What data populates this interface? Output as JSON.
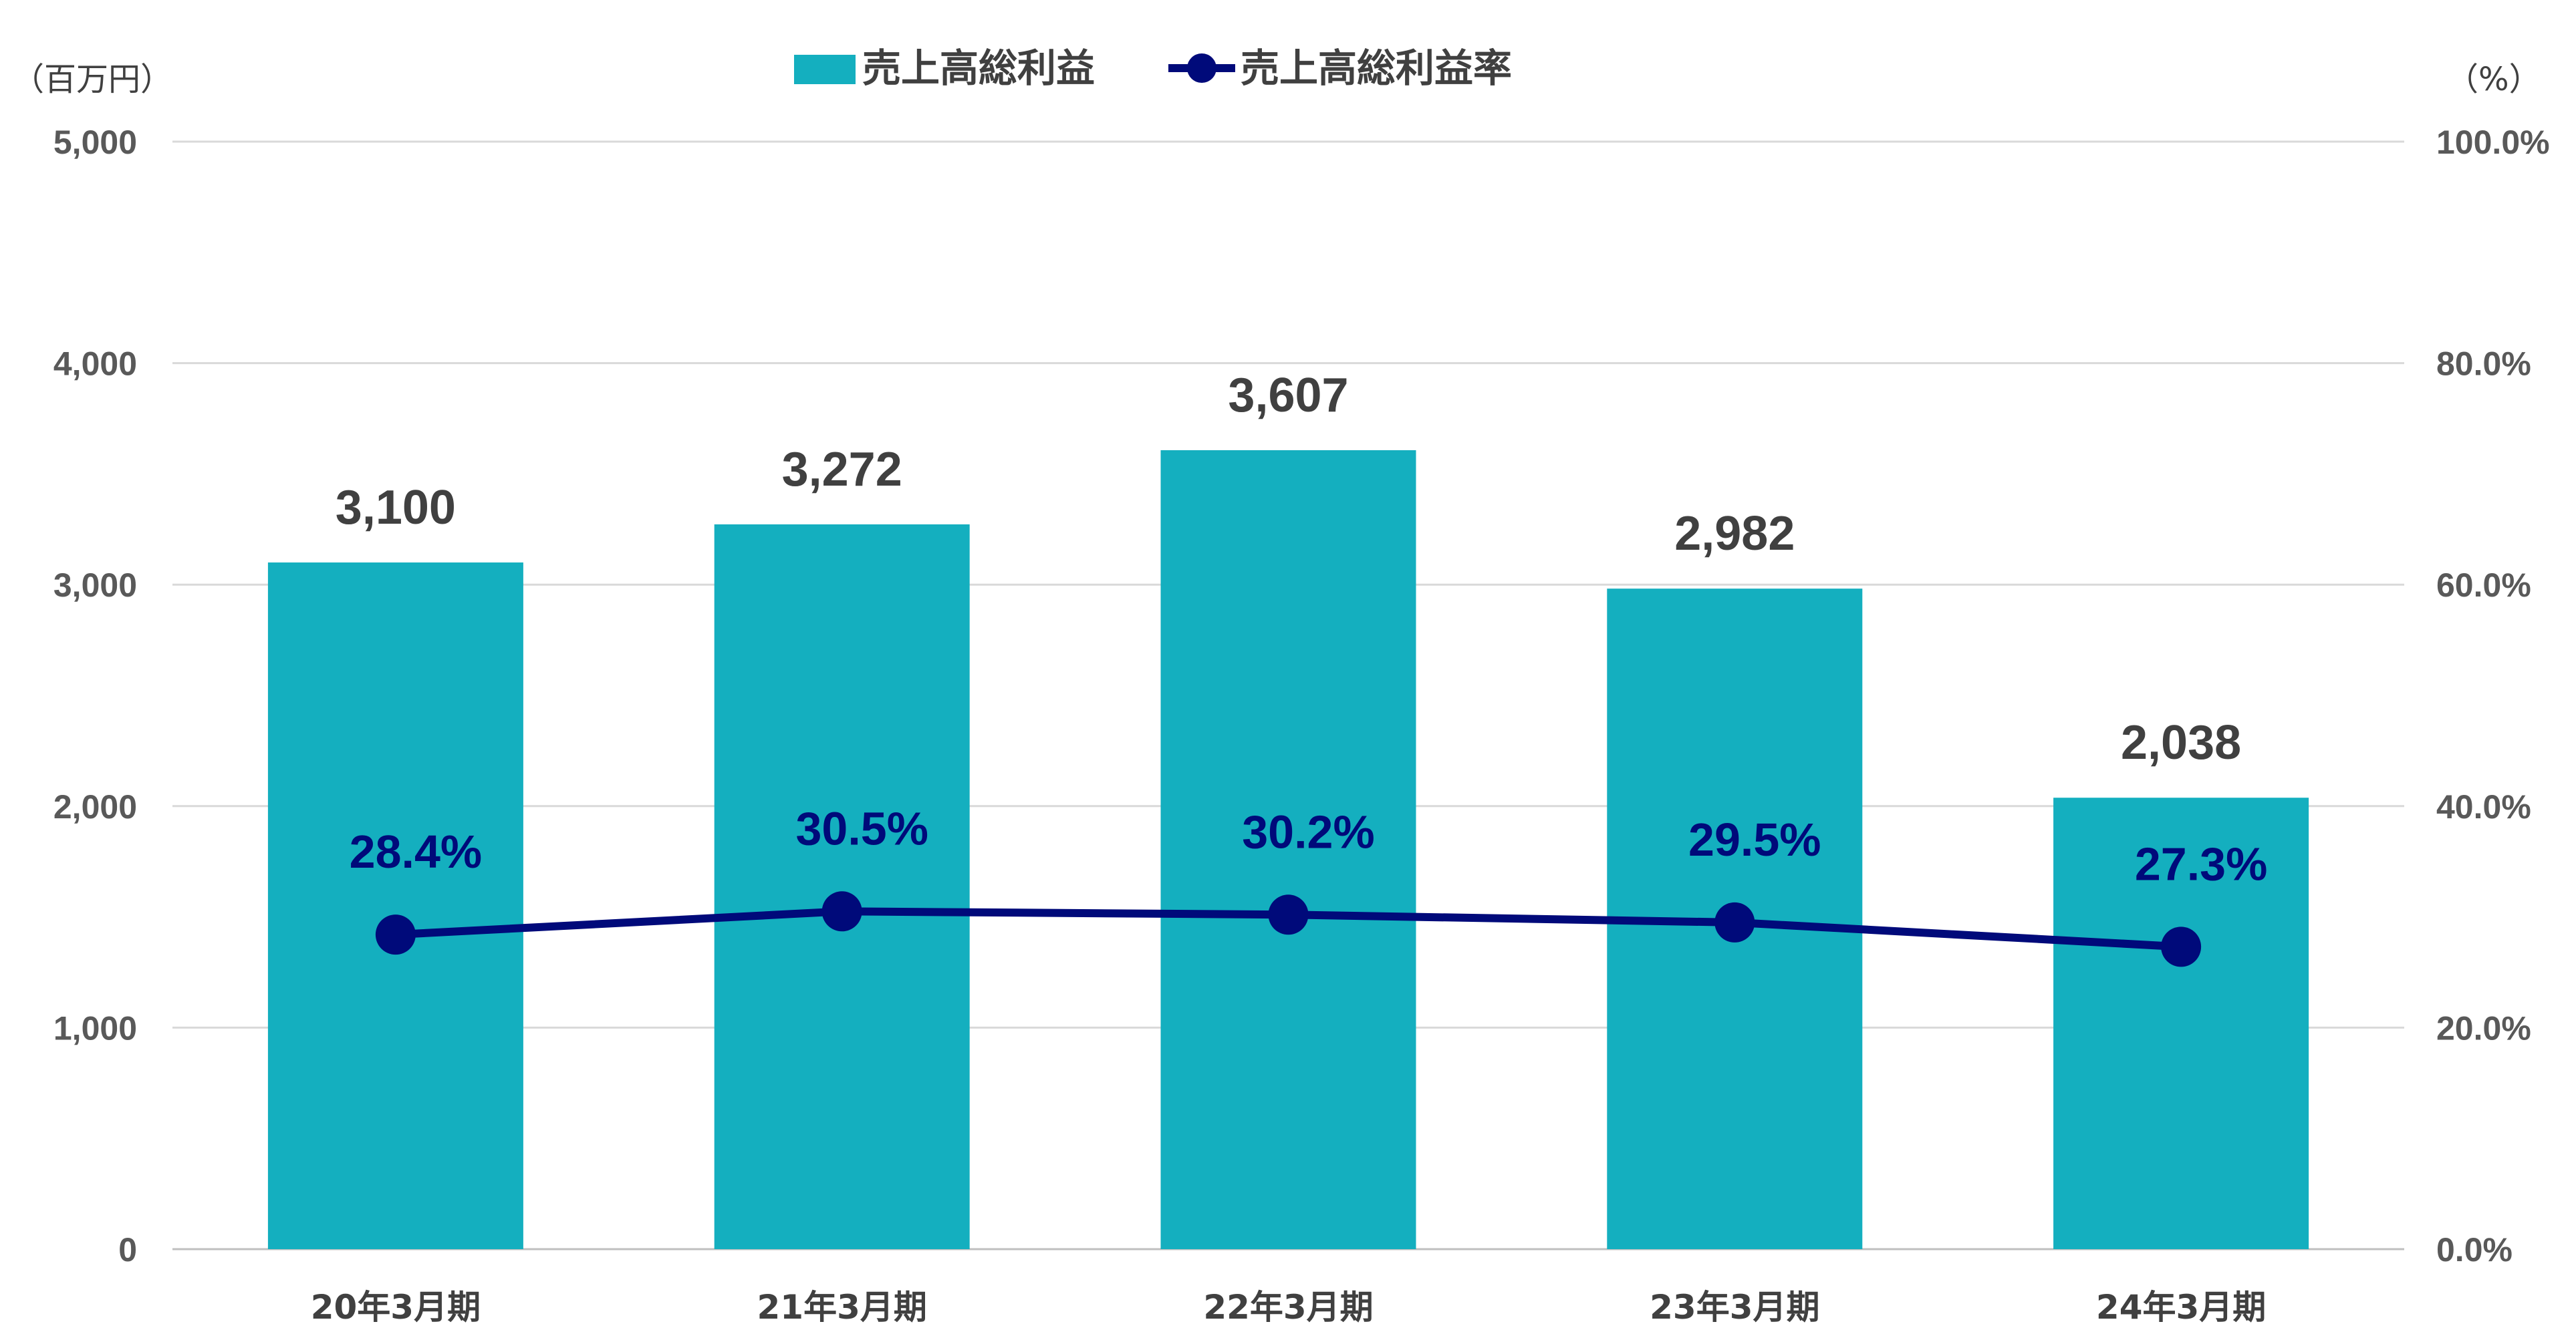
{
  "chart_data": {
    "type": "bar",
    "categories": [
      "20年3月期",
      "21年3月期",
      "22年3月期",
      "23年3月期",
      "24年3月期"
    ],
    "series": [
      {
        "name": "売上高総利益",
        "type": "bar",
        "axis": "left",
        "values": [
          3100,
          3272,
          3607,
          2982,
          2038
        ],
        "labels": [
          "3,100",
          "3,272",
          "3,607",
          "2,982",
          "2,038"
        ],
        "color": "#14AFBF"
      },
      {
        "name": "売上高総利益率",
        "type": "line",
        "axis": "right",
        "values": [
          28.4,
          30.5,
          30.2,
          29.5,
          27.3
        ],
        "labels": [
          "28.4%",
          "30.5%",
          "30.2%",
          "29.5%",
          "27.3%"
        ],
        "color": "#000A7A"
      }
    ],
    "y_left": {
      "unit_label": "（百万円）",
      "ylim": [
        0,
        5000
      ],
      "tick_labels": [
        "0",
        "1,000",
        "2,000",
        "3,000",
        "4,000",
        "5,000"
      ]
    },
    "y_right": {
      "unit_label": "（%）",
      "ylim": [
        0,
        100
      ],
      "tick_labels": [
        "0.0%",
        "20.0%",
        "40.0%",
        "60.0%",
        "80.0%",
        "100.0%"
      ]
    },
    "grid": true,
    "legend_position": "top-center"
  }
}
